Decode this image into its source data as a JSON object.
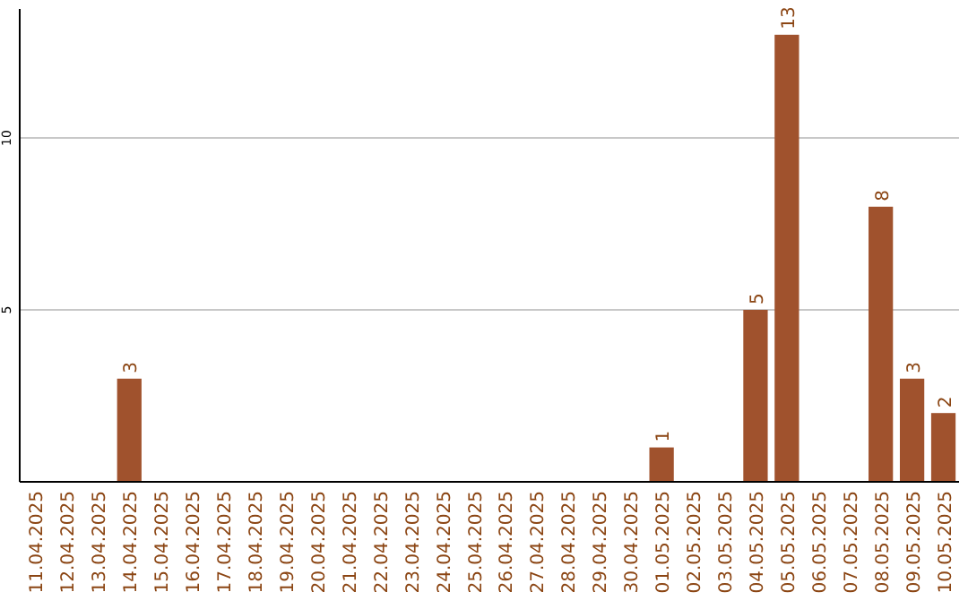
{
  "chart_data": {
    "type": "bar",
    "categories": [
      "11.04.2025",
      "12.04.2025",
      "13.04.2025",
      "14.04.2025",
      "15.04.2025",
      "16.04.2025",
      "17.04.2025",
      "18.04.2025",
      "19.04.2025",
      "20.04.2025",
      "21.04.2025",
      "22.04.2025",
      "23.04.2025",
      "24.04.2025",
      "25.04.2025",
      "26.04.2025",
      "27.04.2025",
      "28.04.2025",
      "29.04.2025",
      "30.04.2025",
      "01.05.2025",
      "02.05.2025",
      "03.05.2025",
      "04.05.2025",
      "05.05.2025",
      "06.05.2025",
      "07.05.2025",
      "08.05.2025",
      "09.05.2025",
      "10.05.2025"
    ],
    "values": [
      0,
      0,
      0,
      3,
      0,
      0,
      0,
      0,
      0,
      0,
      0,
      0,
      0,
      0,
      0,
      0,
      0,
      0,
      0,
      0,
      1,
      0,
      0,
      5,
      13,
      0,
      0,
      8,
      3,
      2
    ],
    "value_labels": [
      null,
      null,
      null,
      "3",
      null,
      null,
      null,
      null,
      null,
      null,
      null,
      null,
      null,
      null,
      null,
      null,
      null,
      null,
      null,
      null,
      "1",
      null,
      null,
      "5",
      "13",
      null,
      null,
      "8",
      "3",
      "2"
    ],
    "color": "#a0522d",
    "ylim": [
      0,
      13.75
    ],
    "yticks": [
      5,
      10
    ],
    "grid": "y"
  }
}
